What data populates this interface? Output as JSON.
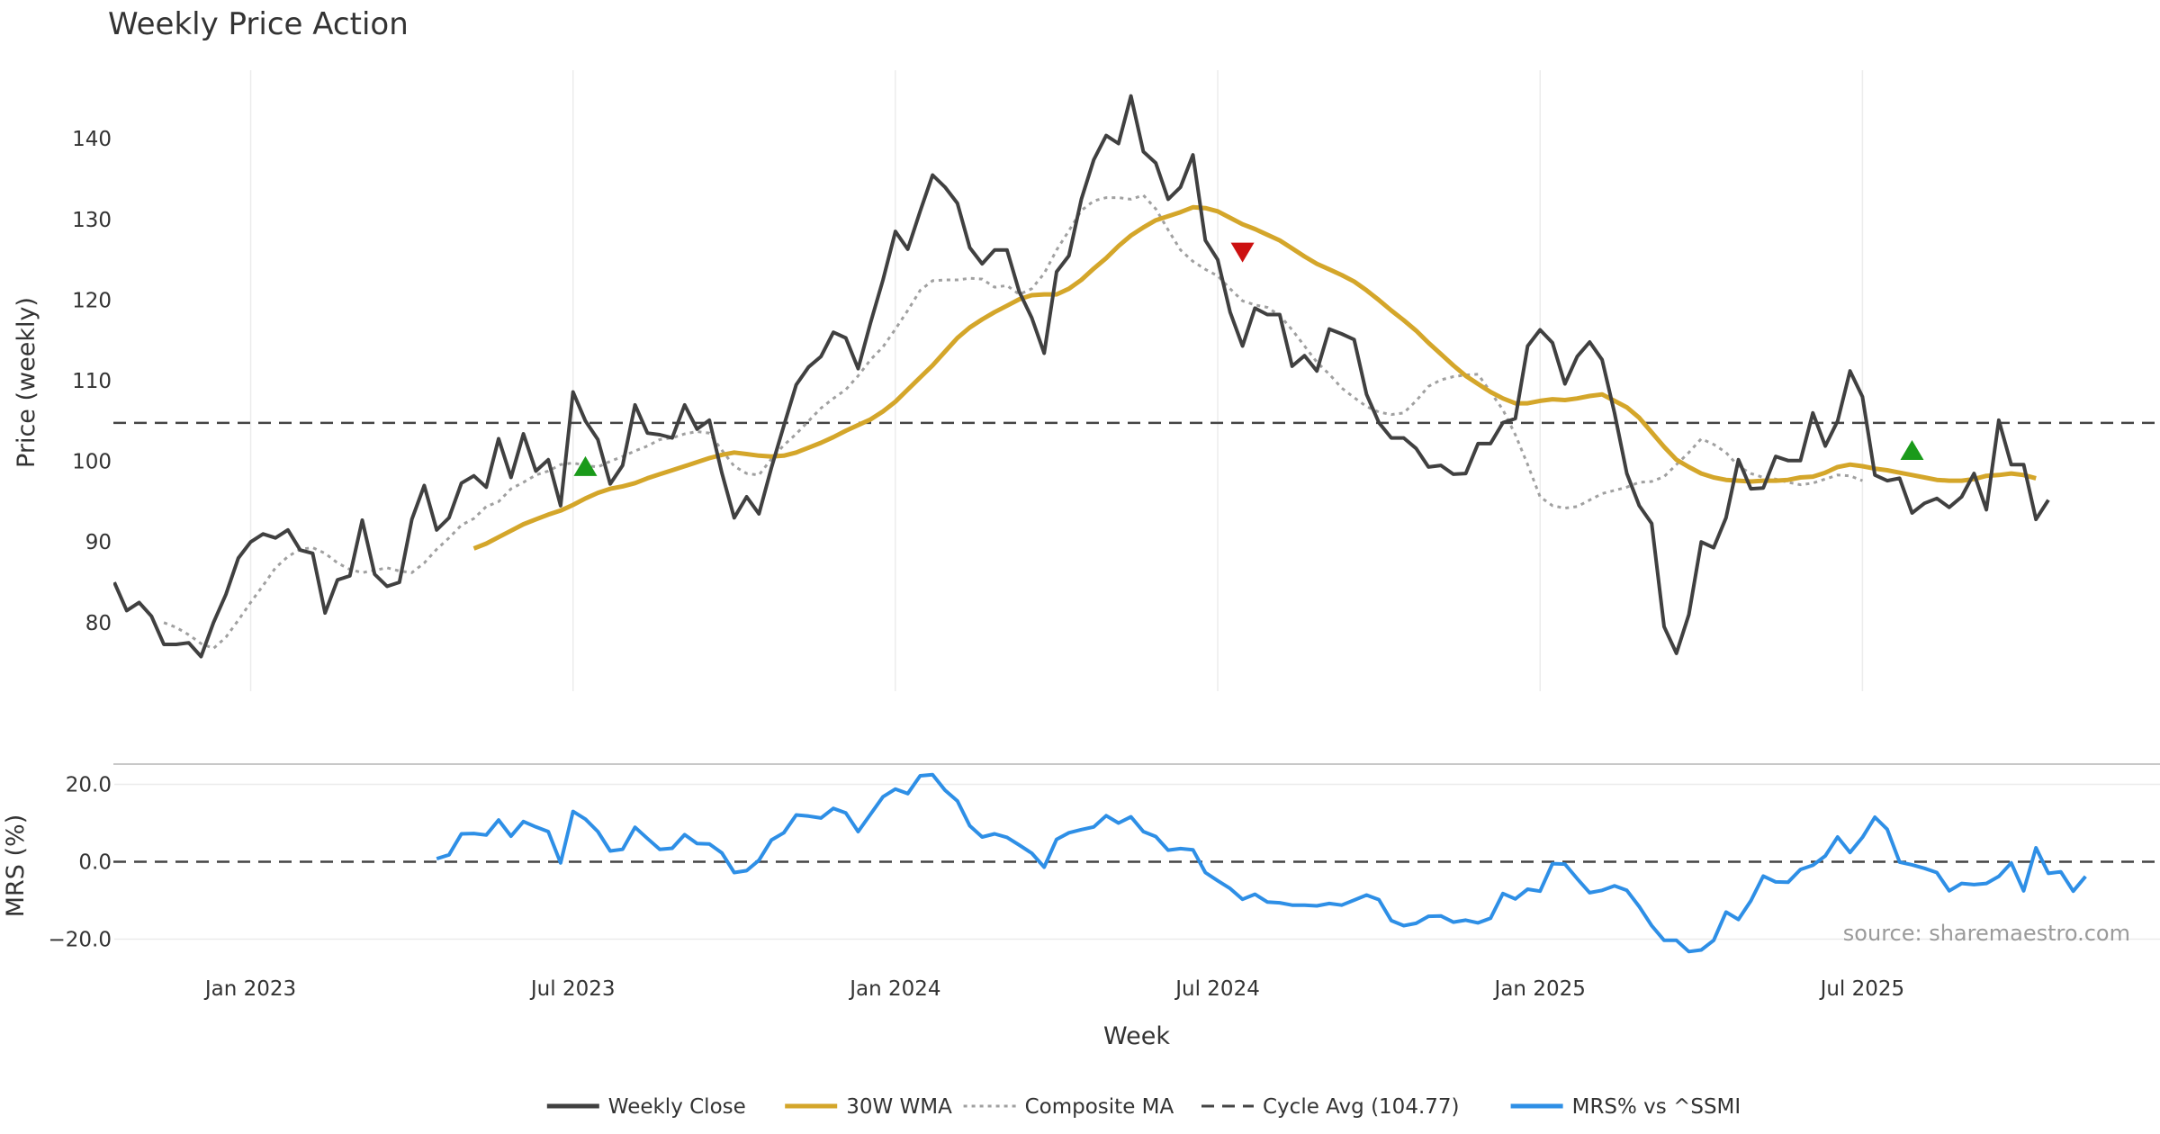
{
  "chart_data": {
    "type": "line",
    "title": "Weekly Price Action",
    "source_note": "source: sharemaestro.com",
    "x_axis": {
      "label": "Week",
      "ticks": [
        "Jan 2023",
        "Jul 2023",
        "Jan 2024",
        "Jul 2024",
        "Jan 2025",
        "Jul 2025"
      ],
      "tick_index": [
        11,
        37,
        63,
        89,
        115,
        141
      ],
      "range": [
        0,
        165
      ]
    },
    "price_panel": {
      "ylabel": "Price (weekly)",
      "ylim": [
        71.5,
        148.5
      ],
      "yticks": [
        80,
        90,
        100,
        110,
        120,
        130,
        140
      ],
      "cycle_avg": 104.77,
      "series": [
        {
          "name": "Weekly Close",
          "color": "#404040",
          "start_index": 0,
          "values": [
            85,
            81.5,
            82.5,
            80.8,
            77.3,
            77.3,
            77.5,
            75.8,
            80,
            83.5,
            88,
            90,
            91,
            90.5,
            91.5,
            89,
            88.6,
            81.2,
            85.3,
            85.8,
            92.7,
            86,
            84.5,
            85,
            92.8,
            97,
            91.5,
            93,
            97.3,
            98.2,
            96.8,
            102.8,
            98,
            103.4,
            98.8,
            100.2,
            94.5,
            108.6,
            105,
            102.7,
            97.2,
            99.5,
            107,
            103.5,
            103.3,
            102.9,
            107,
            104,
            105.1,
            98.6,
            93,
            95.6,
            93.5,
            99.2,
            104.4,
            109.5,
            111.7,
            113,
            116,
            115.3,
            111.5,
            117.2,
            122.5,
            128.5,
            126.3,
            131,
            135.5,
            134,
            132,
            126.5,
            124.5,
            126.2,
            126.2,
            121,
            117.8,
            113.4,
            123.5,
            125.5,
            132.5,
            137.4,
            140.4,
            139.4,
            145.3,
            138.4,
            137,
            132.5,
            134,
            138,
            127.4,
            125,
            118.5,
            114.3,
            119,
            118.2,
            118.2,
            111.8,
            113.1,
            111.2,
            116.4,
            115.8,
            115.1,
            108.3,
            104.8,
            102.9,
            102.9,
            101.6,
            99.3,
            99.5,
            98.4,
            98.5,
            102.2,
            102.2,
            104.8,
            105.3,
            114.3,
            116.3,
            114.7,
            109.6,
            113,
            114.8,
            112.6,
            106,
            98.5,
            94.5,
            92.3,
            79.5,
            76.2,
            81,
            90,
            89.3,
            93,
            100.2,
            96.6,
            96.7,
            100.6,
            100.1,
            100.1,
            106,
            101.9,
            105,
            111.2,
            108,
            98.3,
            97.6,
            97.9,
            93.6,
            94.8,
            95.4,
            94.3,
            95.6,
            98.5,
            94,
            105.1,
            99.6,
            99.6,
            92.8,
            95.2
          ]
        },
        {
          "name": "30W WMA",
          "color": "#d4a62a",
          "start_index": 29,
          "values": [
            89.2,
            89.8,
            90.6,
            91.4,
            92.2,
            92.8,
            93.4,
            93.9,
            94.6,
            95.4,
            96.1,
            96.6,
            96.9,
            97.3,
            97.9,
            98.4,
            98.9,
            99.4,
            99.9,
            100.4,
            100.8,
            101.1,
            100.9,
            100.7,
            100.6,
            100.7,
            101.1,
            101.7,
            102.3,
            103,
            103.8,
            104.5,
            105.2,
            106.2,
            107.4,
            108.9,
            110.4,
            111.9,
            113.6,
            115.3,
            116.6,
            117.6,
            118.5,
            119.3,
            120.1,
            120.6,
            120.7,
            120.7,
            121.4,
            122.5,
            123.9,
            125.2,
            126.7,
            128,
            129,
            129.9,
            130.4,
            130.9,
            131.5,
            131.4,
            131,
            130.2,
            129.4,
            128.8,
            128.1,
            127.4,
            126.4,
            125.4,
            124.5,
            123.8,
            123.1,
            122.3,
            121.2,
            120,
            118.7,
            117.5,
            116.2,
            114.7,
            113.3,
            111.9,
            110.6,
            109.6,
            108.6,
            107.8,
            107.2,
            107.2,
            107.5,
            107.7,
            107.6,
            107.8,
            108.1,
            108.3,
            107.5,
            106.7,
            105.4,
            103.6,
            101.8,
            100.2,
            99.3,
            98.5,
            98,
            97.7,
            97.6,
            97.5,
            97.6,
            97.6,
            97.7,
            98,
            98.1,
            98.6,
            99.3,
            99.6,
            99.4,
            99.1,
            98.9,
            98.6,
            98.3,
            98,
            97.7,
            97.6,
            97.6,
            97.8,
            98.2,
            98.3,
            98.5,
            98.3,
            97.9
          ]
        },
        {
          "name": "Composite MA",
          "color": "#a0a0a0",
          "start_index": 4,
          "values": [
            80,
            79.4,
            78.5,
            77.4,
            76.8,
            78.2,
            80.3,
            82.5,
            84.6,
            86.8,
            88.2,
            89.1,
            89.3,
            88.6,
            87.4,
            86.6,
            86.2,
            86.5,
            86.8,
            86.4,
            86.2,
            87.4,
            89.1,
            90.5,
            92.1,
            92.9,
            94.4,
            95,
            96.6,
            97.4,
            98.3,
            98.8,
            99.6,
            99.8,
            99.5,
            99.3,
            100,
            100.6,
            101.3,
            101.9,
            102.7,
            102.9,
            103.4,
            103.7,
            103.5,
            101.4,
            99.4,
            98.5,
            98.3,
            100.3,
            102,
            103.4,
            105,
            106.6,
            107.8,
            108.9,
            110.6,
            112.6,
            114.2,
            116.4,
            118.7,
            121.2,
            122.4,
            122.5,
            122.5,
            122.7,
            122.6,
            121.6,
            121.8,
            120.7,
            121.4,
            123.3,
            126.2,
            128.6,
            131.1,
            132.3,
            132.7,
            132.7,
            132.5,
            133,
            131.3,
            128.7,
            126.2,
            124.8,
            123.8,
            123,
            121.4,
            119.9,
            119.4,
            119.1,
            118.1,
            116.3,
            114.3,
            112.3,
            110.8,
            109.1,
            107.9,
            106.8,
            106.1,
            105.8,
            106,
            107.5,
            109.3,
            110.1,
            110.5,
            110.7,
            110.8,
            108.6,
            106.4,
            103.3,
            99.6,
            95.6,
            94.5,
            94.2,
            94.4,
            95.2,
            96,
            96.4,
            96.8,
            97.4,
            97.5,
            98.1,
            99.6,
            101.1,
            102.8,
            102.1,
            101.1,
            99.4,
            98.5,
            98,
            97.8,
            97.4,
            97.1,
            97.3,
            97.8,
            98.3,
            98.2,
            97.6
          ]
        }
      ],
      "markers": [
        {
          "type": "buy",
          "index": 38,
          "value": 99.3,
          "color": "#1a9a1a"
        },
        {
          "type": "sell",
          "index": 91,
          "value": 126,
          "color": "#cc1111"
        },
        {
          "type": "buy",
          "index": 145,
          "value": 101.3,
          "color": "#1a9a1a"
        }
      ]
    },
    "mrs_panel": {
      "ylabel": "MRS (%)",
      "ylim": [
        -25,
        25
      ],
      "yticks": [
        20,
        0,
        -20
      ],
      "ytick_labels": [
        "20.0",
        "0.0",
        "−20.0"
      ],
      "zero_line": 0,
      "series": [
        {
          "name": "MRS% vs ^SSMI",
          "color": "#2e8fe6",
          "start_index": 26,
          "values": [
            0.8,
            1.8,
            7.2,
            7.3,
            6.9,
            10.8,
            6.6,
            10.4,
            9,
            7.8,
            -0.3,
            13,
            11,
            7.8,
            2.8,
            3.2,
            8.9,
            6,
            3.2,
            3.5,
            7,
            4.7,
            4.6,
            2.3,
            -2.8,
            -2.3,
            0.4,
            5.6,
            7.5,
            12.1,
            11.8,
            11.3,
            13.8,
            12.6,
            7.8,
            12.3,
            16.8,
            18.8,
            17.6,
            22.2,
            22.5,
            18.5,
            15.7,
            9.3,
            6.4,
            7.2,
            6.3,
            4.3,
            2.2,
            -1.4,
            5.8,
            7.5,
            8.3,
            9,
            11.9,
            10,
            11.6,
            7.8,
            6.5,
            3,
            3.4,
            3.1,
            -2.8,
            -4.9,
            -6.9,
            -9.7,
            -8.4,
            -10.4,
            -10.6,
            -11.2,
            -11.2,
            -11.4,
            -10.8,
            -11.2,
            -9.9,
            -8.6,
            -9.8,
            -15.2,
            -16.5,
            -15.9,
            -14.1,
            -14,
            -15.6,
            -15.1,
            -15.8,
            -14.6,
            -8.2,
            -9.6,
            -7.1,
            -7.6,
            -0.5,
            -0.6,
            -4.4,
            -8,
            -7.4,
            -6.2,
            -7.4,
            -11.6,
            -16.5,
            -20.3,
            -20.3,
            -23.2,
            -22.8,
            -20.3,
            -13,
            -14.9,
            -10.1,
            -3.7,
            -5.2,
            -5.3,
            -2,
            -0.9,
            1.5,
            6.4,
            2.4,
            6.3,
            11.5,
            8.4,
            -0.1,
            -0.8,
            -1.7,
            -2.8,
            -7.5,
            -5.6,
            -5.9,
            -5.6,
            -3.8,
            -0.3,
            -7.5,
            3.6,
            -3,
            -2.6,
            -7.6,
            -3.8
          ]
        }
      ]
    },
    "legend": {
      "position": "bottom-center",
      "entries": [
        {
          "label": "Weekly Close",
          "style": "solid",
          "color": "#404040"
        },
        {
          "label": "30W WMA",
          "style": "solid",
          "color": "#d4a62a"
        },
        {
          "label": "Composite MA",
          "style": "dotted",
          "color": "#a0a0a0"
        },
        {
          "label": "Cycle Avg (104.77)",
          "style": "dashed",
          "color": "#444444"
        },
        {
          "label": "MRS% vs ^SSMI",
          "style": "solid",
          "color": "#2e8fe6"
        }
      ]
    }
  }
}
